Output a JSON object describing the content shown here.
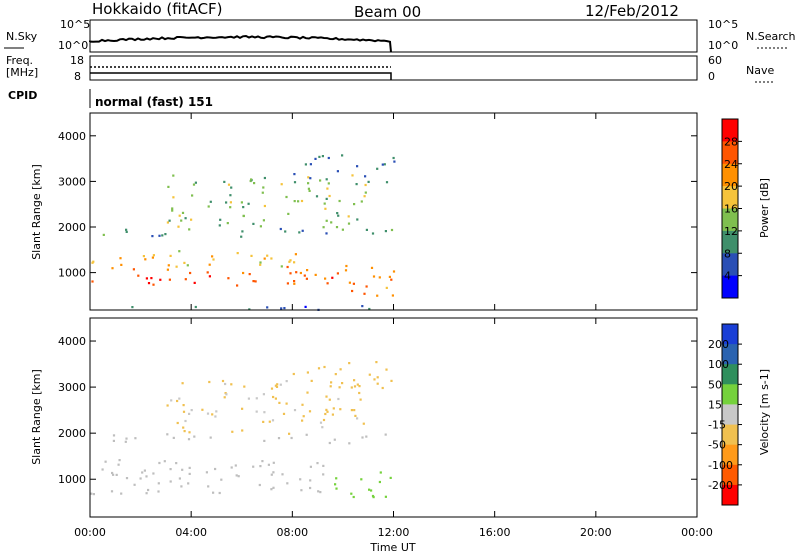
{
  "header": {
    "station": "Hokkaido (fitACF)",
    "beam": "Beam 00",
    "date": "12/Feb/2012"
  },
  "strips": {
    "nsky_label": "N.Sky",
    "nsky_ticks": [
      "10^5",
      "10^0"
    ],
    "nsearch_label": "N.Search",
    "nsearch_ticks": [
      "10^5",
      "10^0"
    ],
    "freq_label_1": "Freq.",
    "freq_label_2": "[MHz]",
    "freq_ticks": [
      "18",
      "8"
    ],
    "nave_label": "Nave",
    "nave_ticks": [
      "60",
      "0"
    ],
    "cpid_label": "CPID",
    "cpid_text": "normal (fast) 151"
  },
  "colors": {
    "power_scale": [
      "#0000ff",
      "#2a4fb5",
      "#3f8f6b",
      "#7fbf4f",
      "#f5c33b",
      "#ff9000",
      "#ff5500",
      "#ff0000"
    ],
    "velocity_scale": [
      "#1a3fd6",
      "#2a63b0",
      "#2f8f5c",
      "#75d23c",
      "#c8c8c8",
      "#f0c050",
      "#ff9a1a",
      "#ff5a00",
      "#ff0000"
    ],
    "ground_scatter": "#bebebe"
  },
  "chart_data": [
    {
      "type": "heatmap",
      "name_hint": "power",
      "xlabel": "Time UT",
      "ylabel": "Slant Range [km]",
      "x_ticks": [
        "00:00",
        "04:00",
        "08:00",
        "12:00",
        "16:00",
        "20:00",
        "00:00"
      ],
      "x_range_hours": [
        0,
        24
      ],
      "y_ticks": [
        1000,
        2000,
        3000,
        4000
      ],
      "y_range_km": [
        180,
        4500
      ],
      "data_end_hour": 12.0,
      "colorbar": {
        "label": "Power [dB]",
        "ticks": [
          4,
          8,
          12,
          16,
          20,
          24,
          28
        ],
        "range": [
          0,
          32
        ]
      },
      "regions": [
        {
          "t0": 0.0,
          "t1": 9.8,
          "r0": 700,
          "r1": 1150,
          "value": 26
        },
        {
          "t0": 0.0,
          "t1": 9.8,
          "r0": 1150,
          "r1": 1500,
          "value": 18
        },
        {
          "t0": 9.3,
          "t1": 12.0,
          "r0": 500,
          "r1": 1200,
          "value": 22
        },
        {
          "t0": 0.0,
          "t1": 12.0,
          "r0": 1800,
          "r1": 2000,
          "value": 10
        },
        {
          "t0": 3.0,
          "t1": 11.0,
          "r0": 2000,
          "r1": 3200,
          "value": 14
        },
        {
          "t0": 8.0,
          "t1": 12.0,
          "r0": 3000,
          "r1": 3600,
          "value": 8
        },
        {
          "t0": 0.0,
          "t1": 12.0,
          "r0": 200,
          "r1": 300,
          "value": 6
        }
      ]
    },
    {
      "type": "heatmap",
      "name_hint": "velocity",
      "xlabel": "Time UT",
      "ylabel": "Slant Range [km]",
      "x_ticks": [
        "00:00",
        "04:00",
        "08:00",
        "12:00",
        "16:00",
        "20:00",
        "00:00"
      ],
      "x_range_hours": [
        0,
        24
      ],
      "y_ticks": [
        1000,
        2000,
        3000,
        4000
      ],
      "y_range_km": [
        180,
        4500
      ],
      "data_end_hour": 12.0,
      "colorbar": {
        "label": "Velocity [m s-1]",
        "ticks": [
          200,
          100,
          50,
          15,
          -15,
          -50,
          -100,
          -200
        ],
        "range": [
          -250,
          250
        ]
      },
      "regions": [
        {
          "t0": 0.0,
          "t1": 9.8,
          "r0": 700,
          "r1": 1500,
          "value": 0
        },
        {
          "t0": 9.6,
          "t1": 12.0,
          "r0": 500,
          "r1": 1200,
          "value": 40
        },
        {
          "t0": 0.0,
          "t1": 12.0,
          "r0": 1800,
          "r1": 2000,
          "value": 0
        },
        {
          "t0": 3.0,
          "t1": 11.0,
          "r0": 2000,
          "r1": 3200,
          "value": -30
        },
        {
          "t0": 8.0,
          "t1": 12.0,
          "r0": 3000,
          "r1": 3600,
          "value": -40
        }
      ]
    }
  ]
}
